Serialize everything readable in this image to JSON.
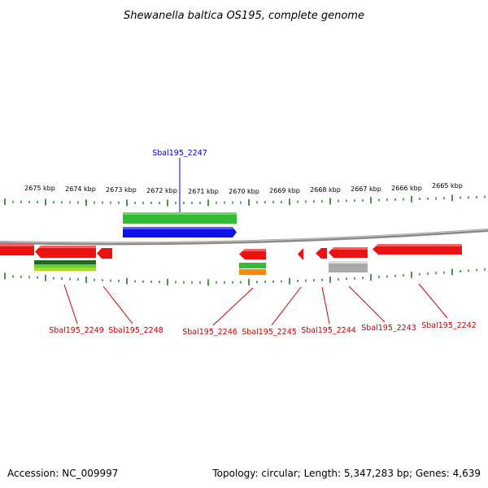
{
  "title": "Shewanella baltica OS195, complete genome",
  "accession": "Accession: NC_009997",
  "summary": "Topology: circular; Length: 5,347,283 bp; Genes: 4,639",
  "colors": {
    "backbone": "#8a8a8a",
    "tick": "#1f7a1f",
    "forward_gene": "#1010ee",
    "reverse_gene": "#ee1111",
    "forward_label": "#0000cc",
    "reverse_label": "#cc0000",
    "cog_green": "#33bb33",
    "cog_lime": "#aadd22",
    "cog_orange": "#ff8800",
    "cog_gray": "#a9a9a9",
    "cog_darkgreen": "#226622"
  },
  "scale_labels": [
    "2675 kbp",
    "2674 kbp",
    "2673 kbp",
    "2672 kbp",
    "2671 kbp",
    "2670 kbp",
    "2669 kbp",
    "2668 kbp",
    "2667 kbp",
    "2666 kbp",
    "2665 kbp"
  ],
  "forward_genes": [
    {
      "id": "Sbal195_2247",
      "label": "Sbal195_2247"
    }
  ],
  "reverse_genes": [
    {
      "id": "Sbal195_2249",
      "label": "Sbal195_2249"
    },
    {
      "id": "Sbal195_2248",
      "label": "Sbal195_2248"
    },
    {
      "id": "Sbal195_2246",
      "label": "Sbal195_2246"
    },
    {
      "id": "Sbal195_2245",
      "label": "Sbal195_2245"
    },
    {
      "id": "Sbal195_2244",
      "label": "Sbal195_2244"
    },
    {
      "id": "Sbal195_2243",
      "label": "Sbal195_2243"
    },
    {
      "id": "Sbal195_2242",
      "label": "Sbal195_2242"
    }
  ]
}
